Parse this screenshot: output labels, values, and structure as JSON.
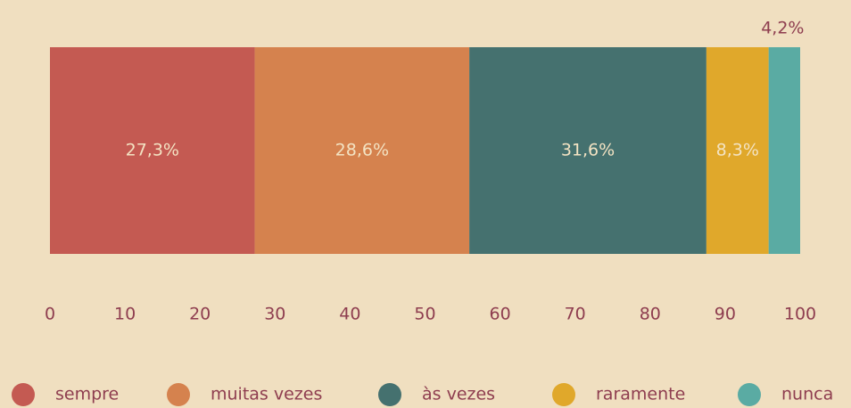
{
  "chart_data": {
    "type": "stacked-bar-horizontal",
    "categories": [
      null
    ],
    "series": [
      {
        "name": "sempre",
        "color": "#c45a52",
        "values": [
          27.3
        ],
        "value_labels": [
          "27,3%"
        ]
      },
      {
        "name": "muitas vezes",
        "color": "#d5824e",
        "values": [
          28.6
        ],
        "value_labels": [
          "28,6%"
        ]
      },
      {
        "name": "às vezes",
        "color": "#45716f",
        "values": [
          31.6
        ],
        "value_labels": [
          "31,6%"
        ]
      },
      {
        "name": "raramente",
        "color": "#e0a82b",
        "values": [
          8.3
        ],
        "value_labels": [
          "8,3%"
        ]
      },
      {
        "name": "nunca",
        "color": "#5aaba3",
        "values": [
          4.2
        ],
        "value_labels": [
          "4,2%"
        ]
      }
    ],
    "xlim": [
      0,
      100
    ],
    "xticks": [
      0,
      10,
      20,
      30,
      40,
      50,
      60,
      70,
      80,
      90,
      100
    ],
    "legend": "bottom"
  }
}
